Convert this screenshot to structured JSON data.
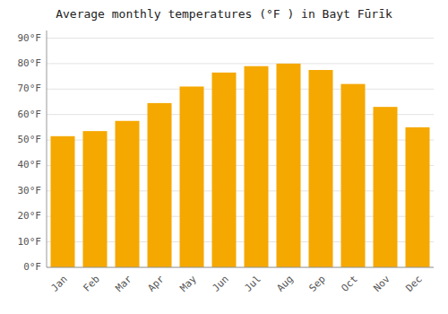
{
  "chart_data": {
    "type": "bar",
    "title": "Average monthly temperatures (°F ) in Bayt Fūrīk",
    "categories": [
      "Jan",
      "Feb",
      "Mar",
      "Apr",
      "May",
      "Jun",
      "Jul",
      "Aug",
      "Sep",
      "Oct",
      "Nov",
      "Dec"
    ],
    "values": [
      51.5,
      53.5,
      57.5,
      64.5,
      71.0,
      76.5,
      79.0,
      80.0,
      77.5,
      72.0,
      63.0,
      55.0
    ],
    "color": "#F5A800",
    "ylim": [
      0,
      93
    ],
    "yticks": [
      {
        "value": 0,
        "label": "0°F"
      },
      {
        "value": 10,
        "label": "10°F"
      },
      {
        "value": 20,
        "label": "20°F"
      },
      {
        "value": 30,
        "label": "30°F"
      },
      {
        "value": 40,
        "label": "40°F"
      },
      {
        "value": 50,
        "label": "50°F"
      },
      {
        "value": 60,
        "label": "60°F"
      },
      {
        "value": 70,
        "label": "70°F"
      },
      {
        "value": 80,
        "label": "80°F"
      },
      {
        "value": 90,
        "label": "90°F"
      }
    ],
    "grid": true
  }
}
